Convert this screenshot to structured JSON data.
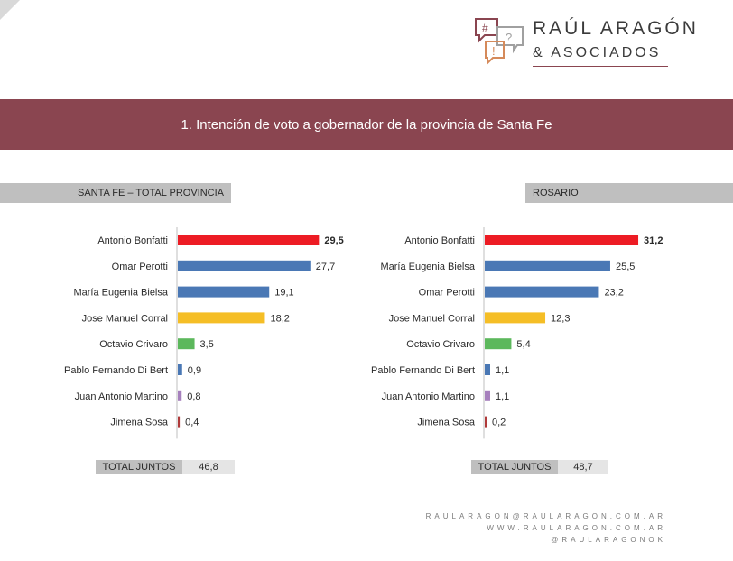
{
  "header": {
    "brand_name": "RAÚL ARAGÓN",
    "brand_sub": "& ASOCIADOS",
    "logo_symbols": [
      "#",
      "?",
      "!"
    ],
    "banner_title": "1. Intención de voto a gobernador de la provincia de Santa Fe"
  },
  "colors": {
    "banner": "#8a4550",
    "red": "#ed1c24",
    "blue": "#4a78b5",
    "yellow": "#f5be26",
    "green": "#5cb85c",
    "purple": "#a680bd",
    "darkred": "#b03a3a"
  },
  "chart_data": [
    {
      "type": "bar",
      "orientation": "horizontal",
      "title": "SANTA FE – TOTAL PROVINCIA",
      "categories": [
        "Antonio Bonfatti",
        "Omar Perotti",
        "María Eugenia Bielsa",
        "Jose Manuel Corral",
        "Octavio Crivaro",
        "Pablo Fernando Di Bert",
        "Juan Antonio Martino",
        "Jimena Sosa"
      ],
      "values": [
        29.5,
        27.7,
        19.1,
        18.2,
        3.5,
        0.9,
        0.8,
        0.4
      ],
      "labels": [
        "29,5",
        "27,7",
        "19,1",
        "18,2",
        "3,5",
        "0,9",
        "0,8",
        "0,4"
      ],
      "colors": [
        "#ed1c24",
        "#4a78b5",
        "#4a78b5",
        "#f5be26",
        "#5cb85c",
        "#4a78b5",
        "#a680bd",
        "#b03a3a"
      ],
      "bold_first_label": true,
      "xlim": [
        0,
        35
      ],
      "total_label": "TOTAL JUNTOS",
      "total_value": "46,8"
    },
    {
      "type": "bar",
      "orientation": "horizontal",
      "title": "ROSARIO",
      "categories": [
        "Antonio Bonfatti",
        "María Eugenia Bielsa",
        "Omar Perotti",
        "Jose Manuel Corral",
        "Octavio Crivaro",
        "Pablo Fernando Di Bert",
        "Juan Antonio Martino",
        "Jimena Sosa"
      ],
      "values": [
        31.2,
        25.5,
        23.2,
        12.3,
        5.4,
        1.1,
        1.1,
        0.2
      ],
      "labels": [
        "31,2",
        "25,5",
        "23,2",
        "12,3",
        "5,4",
        "1,1",
        "1,1",
        "0,2"
      ],
      "colors": [
        "#ed1c24",
        "#4a78b5",
        "#4a78b5",
        "#f5be26",
        "#5cb85c",
        "#4a78b5",
        "#a680bd",
        "#b03a3a"
      ],
      "bold_first_label": true,
      "xlim": [
        0,
        35
      ],
      "total_label": "TOTAL JUNTOS",
      "total_value": "48,7"
    }
  ],
  "footer": {
    "email": "RAULARAGON@RAULARAGON.COM.AR",
    "website": "WWW.RAULARAGON.COM.AR",
    "social": "@RAULARAGONOK"
  }
}
